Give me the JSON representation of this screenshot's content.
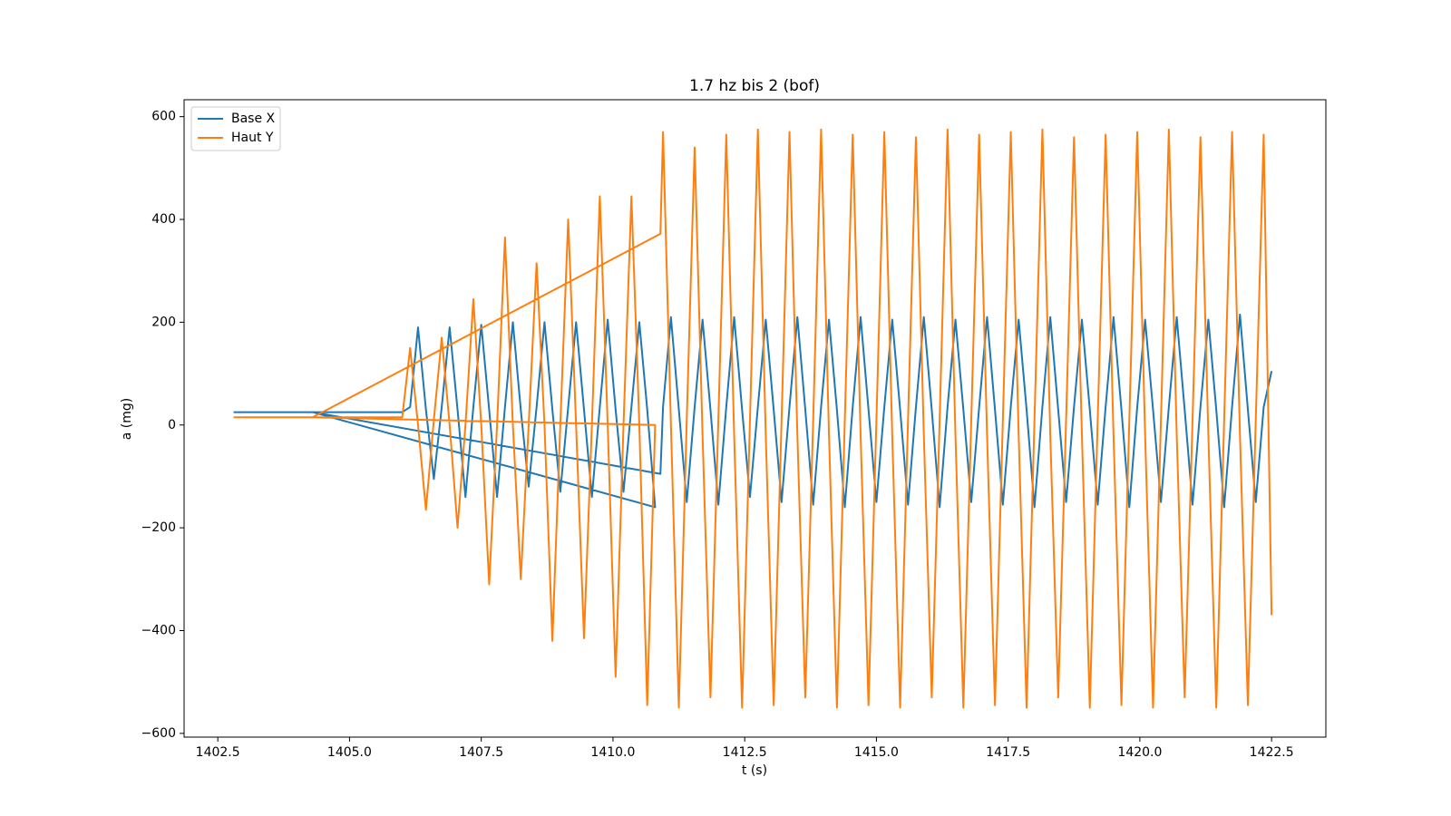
{
  "chart_data": {
    "type": "line",
    "title": "1.7 hz bis 2 (bof)",
    "x_label": "t (s)",
    "y_label": "a (mg)",
    "x": [
      1402.8,
      1406.0,
      1406.15,
      1406.3,
      1406.45,
      1406.6,
      1406.75,
      1406.9,
      1407.05,
      1407.2,
      1407.35,
      1407.5,
      1407.65,
      1407.8,
      1407.95,
      1408.1,
      1408.25,
      1408.4,
      1408.55,
      1408.7,
      1408.85,
      1409.0,
      1409.15,
      1409.3,
      1409.45,
      1409.6,
      1409.75,
      1409.9,
      1410.05,
      1410.2,
      1410.35,
      1410.5,
      1410.65,
      1410.8,
      1404.3,
      1410.9,
      1410.95,
      1411.1,
      1411.25,
      1411.4,
      1411.55,
      1411.7,
      1411.85,
      1412.0,
      1412.15,
      1412.3,
      1412.45,
      1412.6,
      1412.75,
      1412.9,
      1413.05,
      1413.2,
      1413.35,
      1413.5,
      1413.65,
      1413.8,
      1413.95,
      1414.1,
      1414.25,
      1414.4,
      1414.55,
      1414.7,
      1414.85,
      1415.0,
      1415.15,
      1415.3,
      1415.45,
      1415.6,
      1415.75,
      1415.9,
      1416.05,
      1416.2,
      1416.35,
      1416.5,
      1416.65,
      1416.8,
      1416.95,
      1417.1,
      1417.25,
      1417.4,
      1417.55,
      1417.7,
      1417.85,
      1418.0,
      1418.15,
      1418.3,
      1418.45,
      1418.6,
      1418.75,
      1418.9,
      1419.05,
      1419.2,
      1419.35,
      1419.5,
      1419.65,
      1419.8,
      1419.95,
      1420.1,
      1420.25,
      1420.4,
      1420.55,
      1420.7,
      1420.85,
      1421.0,
      1421.15,
      1421.3,
      1421.45,
      1421.6,
      1421.75,
      1421.9,
      1422.05,
      1422.2,
      1422.35,
      1422.5
    ],
    "series": [
      {
        "name": "Base X",
        "color": "#1f77b4",
        "values": [
          25,
          25,
          35,
          190,
          30,
          -105,
          35,
          190,
          30,
          -140,
          35,
          195,
          30,
          -140,
          35,
          200,
          30,
          -120,
          35,
          200,
          30,
          -130,
          35,
          200,
          30,
          -140,
          35,
          205,
          30,
          -130,
          35,
          200,
          30,
          -160,
          25,
          -95,
          35,
          210,
          30,
          -150,
          35,
          205,
          30,
          -155,
          35,
          210,
          30,
          -140,
          35,
          205,
          30,
          -150,
          35,
          210,
          30,
          -155,
          35,
          205,
          30,
          -160,
          35,
          210,
          30,
          -150,
          35,
          205,
          30,
          -155,
          35,
          210,
          30,
          -160,
          35,
          205,
          30,
          -150,
          35,
          210,
          30,
          -155,
          35,
          205,
          30,
          -160,
          35,
          210,
          30,
          -150,
          35,
          205,
          30,
          -155,
          35,
          210,
          30,
          -160,
          35,
          205,
          30,
          -150,
          35,
          210,
          30,
          -155,
          35,
          205,
          30,
          -160,
          35,
          215,
          30,
          -150,
          35,
          105
        ]
      },
      {
        "name": "Haut Y",
        "color": "#ff7f0e",
        "values": [
          15,
          15,
          150,
          0,
          -165,
          10,
          170,
          0,
          -200,
          0,
          245,
          0,
          -310,
          0,
          365,
          0,
          -300,
          0,
          315,
          0,
          -420,
          0,
          400,
          0,
          -415,
          0,
          445,
          0,
          -490,
          0,
          445,
          0,
          -545,
          0,
          15,
          372,
          570,
          0,
          -550,
          10,
          540,
          -20,
          -530,
          10,
          565,
          -20,
          -550,
          10,
          575,
          -20,
          -545,
          10,
          570,
          -20,
          -530,
          10,
          575,
          -20,
          -550,
          10,
          565,
          -20,
          -545,
          10,
          570,
          -20,
          -550,
          10,
          560,
          -20,
          -530,
          10,
          575,
          -20,
          -550,
          10,
          565,
          -20,
          -545,
          10,
          570,
          -20,
          -550,
          10,
          575,
          -20,
          -530,
          10,
          560,
          -20,
          -550,
          10,
          565,
          -20,
          -545,
          10,
          570,
          -20,
          -550,
          10,
          575,
          -20,
          -530,
          10,
          560,
          -20,
          -550,
          10,
          570,
          -20,
          -545,
          10,
          565,
          -370
        ]
      }
    ],
    "xlim": [
      1401.86,
      1423.53
    ],
    "ylim": [
      -607.3,
      632.9
    ],
    "xticks": [
      1402.5,
      {
        "value": 1405.0,
        "label": "1405.0"
      },
      1407.5,
      {
        "value": 1410.0,
        "label": "1410.0"
      },
      1412.5,
      {
        "value": 1415.0,
        "label": "1415.0"
      },
      1417.5,
      {
        "value": 1420.0,
        "label": "1420.0"
      },
      1422.5
    ],
    "yticks": [
      {
        "value": -600,
        "label": "−600"
      },
      {
        "value": -400,
        "label": "−400"
      },
      {
        "value": -200,
        "label": "−200"
      },
      0,
      200,
      400,
      600
    ],
    "legend": "upper left",
    "grid": false
  }
}
